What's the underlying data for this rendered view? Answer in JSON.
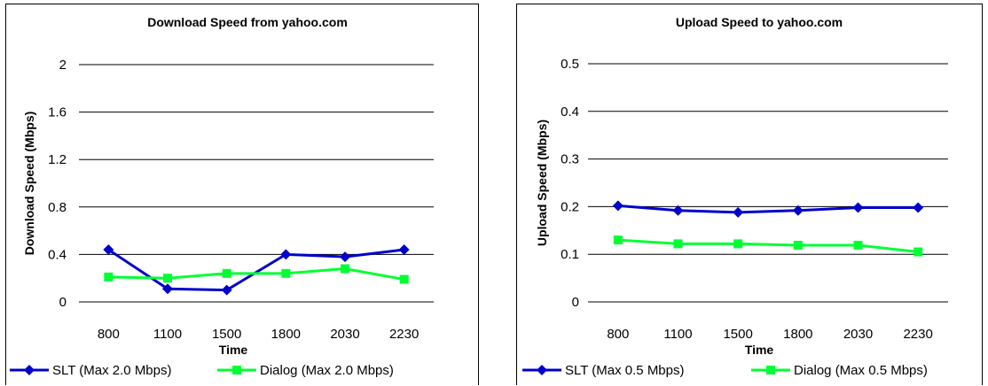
{
  "chart_data": [
    {
      "type": "line",
      "title": "Download Speed from yahoo.com",
      "xlabel": "Time",
      "ylabel": "Download Speed (Mbps)",
      "categories": [
        "800",
        "1100",
        "1500",
        "1800",
        "2030",
        "2230"
      ],
      "ylim": [
        0,
        2
      ],
      "yticks": [
        "0",
        "0.4",
        "0.8",
        "1.2",
        "1.6",
        "2"
      ],
      "grid": true,
      "legend_position": "bottom",
      "series": [
        {
          "name": "SLT (Max 2.0 Mbps)",
          "color": "#0000cc",
          "marker": "diamond",
          "values": [
            0.44,
            0.11,
            0.1,
            0.4,
            0.38,
            0.44
          ]
        },
        {
          "name": "Dialog (Max 2.0 Mbps)",
          "color": "#00ff33",
          "marker": "square",
          "values": [
            0.21,
            0.2,
            0.24,
            0.24,
            0.28,
            0.19
          ]
        }
      ]
    },
    {
      "type": "line",
      "title": "Upload Speed to yahoo.com",
      "xlabel": "Time",
      "ylabel": "Upload Speed (Mbps)",
      "categories": [
        "800",
        "1100",
        "1500",
        "1800",
        "2030",
        "2230"
      ],
      "ylim": [
        0,
        0.5
      ],
      "yticks": [
        "0",
        "0.1",
        "0.2",
        "0.3",
        "0.4",
        "0.5"
      ],
      "grid": true,
      "legend_position": "bottom",
      "series": [
        {
          "name": "SLT (Max 0.5 Mbps)",
          "color": "#0000cc",
          "marker": "diamond",
          "values": [
            0.202,
            0.192,
            0.188,
            0.192,
            0.198,
            0.198
          ]
        },
        {
          "name": "Dialog (Max 0.5 Mbps)",
          "color": "#00ff33",
          "marker": "square",
          "values": [
            0.13,
            0.122,
            0.122,
            0.119,
            0.119,
            0.105
          ]
        }
      ]
    }
  ]
}
